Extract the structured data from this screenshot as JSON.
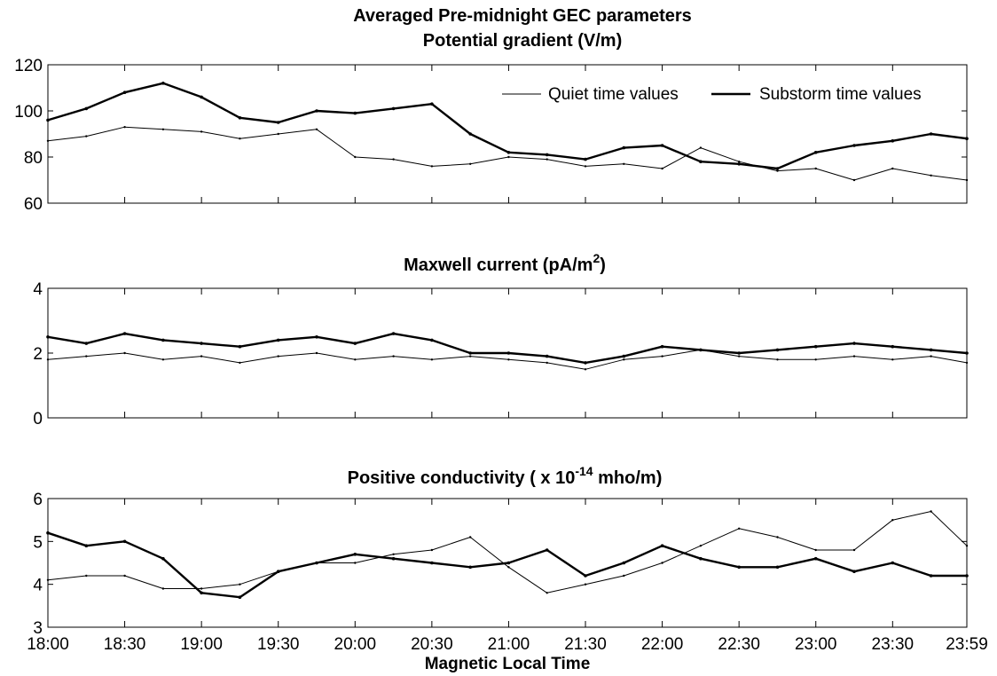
{
  "figure": {
    "title": "Averaged Pre-midnight GEC parameters",
    "xlabel": "Magnetic Local Time"
  },
  "legend": [
    {
      "label": "Quiet time values",
      "style": "thin"
    },
    {
      "label": "Substorm time values",
      "style": "thick"
    }
  ],
  "chart_data": [
    {
      "type": "line",
      "title": "Potential gradient (V/m)",
      "xlabel": "",
      "ylabel": "",
      "xlim": [
        "18:00",
        "23:59"
      ],
      "ylim": [
        60,
        120
      ],
      "yticks": [
        60,
        80,
        100,
        120
      ],
      "xtick_labels": [
        "18:00",
        "18:30",
        "19:00",
        "19:30",
        "20:00",
        "20:30",
        "21:00",
        "21:30",
        "22:00",
        "22:30",
        "23:00",
        "23:30",
        "23:59"
      ],
      "grid": false,
      "legend_position": "top-right",
      "x": [
        "18:00",
        "18:15",
        "18:30",
        "18:45",
        "19:00",
        "19:15",
        "19:30",
        "19:45",
        "20:00",
        "20:15",
        "20:30",
        "20:45",
        "21:00",
        "21:15",
        "21:30",
        "21:45",
        "22:00",
        "22:15",
        "22:30",
        "22:45",
        "23:00",
        "23:15",
        "23:30",
        "23:45",
        "23:59"
      ],
      "series": [
        {
          "name": "Quiet time values",
          "values": [
            87,
            89,
            93,
            92,
            91,
            88,
            90,
            92,
            80,
            79,
            76,
            77,
            80,
            79,
            76,
            77,
            75,
            84,
            78,
            74,
            75,
            70,
            75,
            72,
            70
          ]
        },
        {
          "name": "Substorm time values",
          "values": [
            96,
            101,
            108,
            112,
            106,
            97,
            95,
            100,
            99,
            101,
            103,
            90,
            82,
            81,
            79,
            84,
            85,
            78,
            77,
            75,
            82,
            85,
            87,
            90,
            88
          ]
        }
      ]
    },
    {
      "type": "line",
      "title": "Maxwell current (pA/m²)",
      "title_main": "Maxwell current (pA/m",
      "title_sup": "2",
      "title_end": ")",
      "xlabel": "",
      "ylabel": "",
      "xlim": [
        "18:00",
        "23:59"
      ],
      "ylim": [
        0,
        4
      ],
      "yticks": [
        0,
        2,
        4
      ],
      "xtick_labels": [
        "18:00",
        "18:30",
        "19:00",
        "19:30",
        "20:00",
        "20:30",
        "21:00",
        "21:30",
        "22:00",
        "22:30",
        "23:00",
        "23:30",
        "23:59"
      ],
      "grid": false,
      "x": [
        "18:00",
        "18:15",
        "18:30",
        "18:45",
        "19:00",
        "19:15",
        "19:30",
        "19:45",
        "20:00",
        "20:15",
        "20:30",
        "20:45",
        "21:00",
        "21:15",
        "21:30",
        "21:45",
        "22:00",
        "22:15",
        "22:30",
        "22:45",
        "23:00",
        "23:15",
        "23:30",
        "23:45",
        "23:59"
      ],
      "series": [
        {
          "name": "Quiet time values",
          "values": [
            1.8,
            1.9,
            2.0,
            1.8,
            1.9,
            1.7,
            1.9,
            2.0,
            1.8,
            1.9,
            1.8,
            1.9,
            1.8,
            1.7,
            1.5,
            1.8,
            1.9,
            2.1,
            1.9,
            1.8,
            1.8,
            1.9,
            1.8,
            1.9,
            1.7
          ]
        },
        {
          "name": "Substorm time values",
          "values": [
            2.5,
            2.3,
            2.6,
            2.4,
            2.3,
            2.2,
            2.4,
            2.5,
            2.3,
            2.6,
            2.4,
            2.0,
            2.0,
            1.9,
            1.7,
            1.9,
            2.2,
            2.1,
            2.0,
            2.1,
            2.2,
            2.3,
            2.2,
            2.1,
            2.0
          ]
        }
      ]
    },
    {
      "type": "line",
      "title": "Positive conductivity ( x 10⁻¹⁴ mho/m)",
      "title_main": "Positive conductivity ( x 10",
      "title_sup": "-14",
      "title_end": " mho/m)",
      "xlabel": "Magnetic Local Time",
      "ylabel": "",
      "xlim": [
        "18:00",
        "23:59"
      ],
      "ylim": [
        3,
        6
      ],
      "yticks": [
        3,
        4,
        5,
        6
      ],
      "xtick_labels": [
        "18:00",
        "18:30",
        "19:00",
        "19:30",
        "20:00",
        "20:30",
        "21:00",
        "21:30",
        "22:00",
        "22:30",
        "23:00",
        "23:30",
        "23:59"
      ],
      "grid": false,
      "x": [
        "18:00",
        "18:15",
        "18:30",
        "18:45",
        "19:00",
        "19:15",
        "19:30",
        "19:45",
        "20:00",
        "20:15",
        "20:30",
        "20:45",
        "21:00",
        "21:15",
        "21:30",
        "21:45",
        "22:00",
        "22:15",
        "22:30",
        "22:45",
        "23:00",
        "23:15",
        "23:30",
        "23:45",
        "23:59"
      ],
      "series": [
        {
          "name": "Quiet time values",
          "values": [
            4.1,
            4.2,
            4.2,
            3.9,
            3.9,
            4.0,
            4.3,
            4.5,
            4.5,
            4.7,
            4.8,
            5.1,
            4.4,
            3.8,
            4.0,
            4.2,
            4.5,
            4.9,
            5.3,
            5.1,
            4.8,
            4.8,
            5.5,
            5.7,
            4.9
          ]
        },
        {
          "name": "Substorm time values",
          "values": [
            5.2,
            4.9,
            5.0,
            4.6,
            3.8,
            3.7,
            4.3,
            4.5,
            4.7,
            4.6,
            4.5,
            4.4,
            4.5,
            4.8,
            4.2,
            4.5,
            4.9,
            4.6,
            4.4,
            4.4,
            4.6,
            4.3,
            4.5,
            4.2,
            4.2
          ]
        }
      ]
    }
  ]
}
